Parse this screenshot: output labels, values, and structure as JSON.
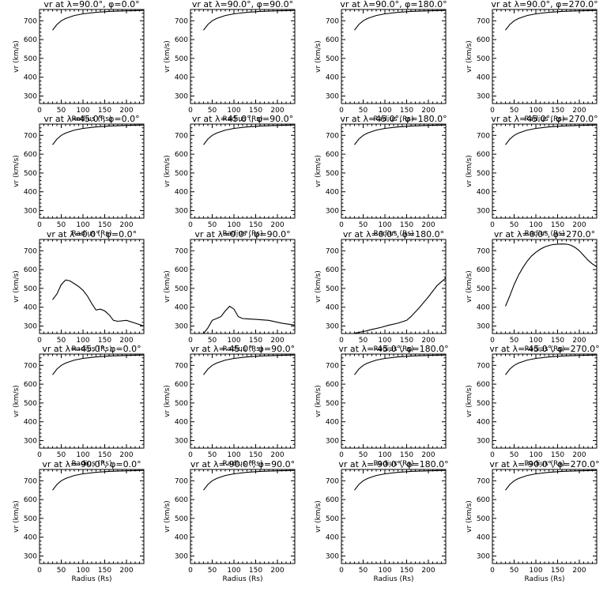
{
  "chart_data": [
    {
      "type": "line",
      "title": "vr at λ=90.0°, φ=0.0°",
      "xlabel": "Radius (Rs)",
      "ylabel": "vr (km/s)",
      "xlim": [
        0,
        240
      ],
      "ylim": [
        260,
        760
      ],
      "xticks": [
        0,
        50,
        100,
        150,
        200
      ],
      "yticks": [
        300,
        400,
        500,
        600,
        700
      ],
      "x": [
        30,
        40,
        50,
        60,
        80,
        100,
        130,
        160,
        200,
        240
      ],
      "y": [
        650,
        680,
        700,
        712,
        728,
        737,
        745,
        750,
        753,
        755
      ]
    },
    {
      "type": "line",
      "title": "vr at λ=90.0°, φ=90.0°",
      "xlabel": "Radius (Rs)",
      "ylabel": "vr (km/s)",
      "xlim": [
        0,
        240
      ],
      "ylim": [
        260,
        760
      ],
      "xticks": [
        0,
        50,
        100,
        150,
        200
      ],
      "yticks": [
        300,
        400,
        500,
        600,
        700
      ],
      "x": [
        30,
        40,
        50,
        60,
        80,
        100,
        130,
        160,
        200,
        240
      ],
      "y": [
        650,
        680,
        700,
        712,
        728,
        737,
        745,
        750,
        753,
        755
      ]
    },
    {
      "type": "line",
      "title": "vr at λ=90.0°, φ=180.0°",
      "xlabel": "Radius (Rs)",
      "ylabel": "vr (km/s)",
      "xlim": [
        0,
        240
      ],
      "ylim": [
        260,
        760
      ],
      "xticks": [
        0,
        50,
        100,
        150,
        200
      ],
      "yticks": [
        300,
        400,
        500,
        600,
        700
      ],
      "x": [
        30,
        40,
        50,
        60,
        80,
        100,
        130,
        160,
        200,
        240
      ],
      "y": [
        650,
        680,
        700,
        712,
        728,
        737,
        745,
        750,
        753,
        755
      ]
    },
    {
      "type": "line",
      "title": "vr at λ=90.0°, φ=270.0°",
      "xlabel": "Radius (Rs)",
      "ylabel": "vr (km/s)",
      "xlim": [
        0,
        240
      ],
      "ylim": [
        260,
        760
      ],
      "xticks": [
        0,
        50,
        100,
        150,
        200
      ],
      "yticks": [
        300,
        400,
        500,
        600,
        700
      ],
      "x": [
        30,
        40,
        50,
        60,
        80,
        100,
        130,
        160,
        200,
        240
      ],
      "y": [
        650,
        680,
        700,
        712,
        728,
        737,
        745,
        750,
        753,
        755
      ]
    },
    {
      "type": "line",
      "title": "vr at λ=45.0°, φ=0.0°",
      "xlabel": "Radius (Rs)",
      "ylabel": "vr (km/s)",
      "xlim": [
        0,
        240
      ],
      "ylim": [
        260,
        760
      ],
      "xticks": [
        0,
        50,
        100,
        150,
        200
      ],
      "yticks": [
        300,
        400,
        500,
        600,
        700
      ],
      "x": [
        30,
        40,
        50,
        60,
        80,
        100,
        130,
        160,
        200,
        240
      ],
      "y": [
        650,
        680,
        700,
        712,
        728,
        737,
        745,
        750,
        753,
        755
      ]
    },
    {
      "type": "line",
      "title": "vr at λ=45.0°, φ=90.0°",
      "xlabel": "Radius (Rs)",
      "ylabel": "vr (km/s)",
      "xlim": [
        0,
        240
      ],
      "ylim": [
        260,
        760
      ],
      "xticks": [
        0,
        50,
        100,
        150,
        200
      ],
      "yticks": [
        300,
        400,
        500,
        600,
        700
      ],
      "x": [
        30,
        40,
        50,
        60,
        80,
        100,
        130,
        160,
        200,
        240
      ],
      "y": [
        650,
        680,
        700,
        712,
        728,
        737,
        745,
        750,
        753,
        755
      ]
    },
    {
      "type": "line",
      "title": "vr at λ=45.0°, φ=180.0°",
      "xlabel": "Radius (Rs)",
      "ylabel": "vr (km/s)",
      "xlim": [
        0,
        240
      ],
      "ylim": [
        260,
        760
      ],
      "xticks": [
        0,
        50,
        100,
        150,
        200
      ],
      "yticks": [
        300,
        400,
        500,
        600,
        700
      ],
      "x": [
        30,
        40,
        50,
        60,
        80,
        100,
        130,
        160,
        200,
        240
      ],
      "y": [
        650,
        680,
        700,
        712,
        728,
        737,
        745,
        750,
        753,
        755
      ]
    },
    {
      "type": "line",
      "title": "vr at λ=45.0°, φ=270.0°",
      "xlabel": "Radius (Rs)",
      "ylabel": "vr (km/s)",
      "xlim": [
        0,
        240
      ],
      "ylim": [
        260,
        760
      ],
      "xticks": [
        0,
        50,
        100,
        150,
        200
      ],
      "yticks": [
        300,
        400,
        500,
        600,
        700
      ],
      "x": [
        30,
        40,
        50,
        60,
        80,
        100,
        130,
        160,
        200,
        240
      ],
      "y": [
        650,
        680,
        700,
        712,
        728,
        737,
        745,
        750,
        753,
        755
      ]
    },
    {
      "type": "line",
      "title": "vr at λ=0.0°, φ=0.0°",
      "xlabel": "Radius (Rs)",
      "ylabel": "vr (km/s)",
      "xlim": [
        0,
        240
      ],
      "ylim": [
        260,
        760
      ],
      "xticks": [
        0,
        50,
        100,
        150,
        200
      ],
      "yticks": [
        300,
        400,
        500,
        600,
        700
      ],
      "x": [
        30,
        40,
        50,
        60,
        70,
        80,
        90,
        100,
        110,
        120,
        130,
        140,
        150,
        160,
        170,
        180,
        200,
        220,
        240
      ],
      "y": [
        440,
        470,
        520,
        545,
        540,
        525,
        510,
        490,
        460,
        420,
        385,
        390,
        380,
        360,
        330,
        325,
        330,
        315,
        300
      ]
    },
    {
      "type": "line",
      "title": "vr at λ=0.0°, φ=90.0°",
      "xlabel": "Radius (Rs)",
      "ylabel": "vr (km/s)",
      "xlim": [
        0,
        240
      ],
      "ylim": [
        260,
        760
      ],
      "xticks": [
        0,
        50,
        100,
        150,
        200
      ],
      "yticks": [
        300,
        400,
        500,
        600,
        700
      ],
      "x": [
        30,
        40,
        50,
        60,
        70,
        80,
        90,
        100,
        110,
        120,
        130,
        150,
        180,
        210,
        240
      ],
      "y": [
        260,
        290,
        330,
        340,
        350,
        380,
        405,
        390,
        350,
        340,
        338,
        335,
        330,
        315,
        305
      ]
    },
    {
      "type": "line",
      "title": "vr at λ=0.0°, φ=180.0°",
      "xlabel": "Radius (Rs)",
      "ylabel": "vr (km/s)",
      "xlim": [
        0,
        240
      ],
      "ylim": [
        260,
        760
      ],
      "xticks": [
        0,
        50,
        100,
        150,
        200
      ],
      "yticks": [
        300,
        400,
        500,
        600,
        700
      ],
      "x": [
        30,
        50,
        70,
        90,
        110,
        130,
        150,
        160,
        180,
        200,
        220,
        240
      ],
      "y": [
        262,
        270,
        282,
        292,
        305,
        315,
        330,
        350,
        400,
        455,
        515,
        555
      ]
    },
    {
      "type": "line",
      "title": "vr at λ=0.0°, φ=270.0°",
      "xlabel": "Radius (Rs)",
      "ylabel": "vr (km/s)",
      "xlim": [
        0,
        240
      ],
      "ylim": [
        260,
        760
      ],
      "xticks": [
        0,
        50,
        100,
        150,
        200
      ],
      "yticks": [
        300,
        400,
        500,
        600,
        700
      ],
      "x": [
        30,
        40,
        50,
        60,
        70,
        80,
        90,
        100,
        110,
        120,
        130,
        140,
        150,
        160,
        170,
        180,
        190,
        200,
        210,
        220,
        230,
        240
      ],
      "y": [
        405,
        460,
        520,
        570,
        610,
        645,
        672,
        692,
        708,
        720,
        728,
        733,
        735,
        736,
        735,
        730,
        718,
        700,
        675,
        650,
        630,
        615
      ]
    },
    {
      "type": "line",
      "title": "vr at λ=-45.0°, φ=0.0°",
      "xlabel": "Radius (Rs)",
      "ylabel": "vr (km/s)",
      "xlim": [
        0,
        240
      ],
      "ylim": [
        260,
        760
      ],
      "xticks": [
        0,
        50,
        100,
        150,
        200
      ],
      "yticks": [
        300,
        400,
        500,
        600,
        700
      ],
      "x": [
        30,
        40,
        50,
        60,
        80,
        100,
        130,
        160,
        200,
        240
      ],
      "y": [
        650,
        680,
        700,
        712,
        728,
        737,
        745,
        750,
        753,
        755
      ]
    },
    {
      "type": "line",
      "title": "vr at λ=-45.0°, φ=90.0°",
      "xlabel": "Radius (Rs)",
      "ylabel": "vr (km/s)",
      "xlim": [
        0,
        240
      ],
      "ylim": [
        260,
        760
      ],
      "xticks": [
        0,
        50,
        100,
        150,
        200
      ],
      "yticks": [
        300,
        400,
        500,
        600,
        700
      ],
      "x": [
        30,
        40,
        50,
        60,
        80,
        100,
        130,
        160,
        200,
        240
      ],
      "y": [
        650,
        680,
        700,
        712,
        728,
        737,
        745,
        750,
        753,
        755
      ]
    },
    {
      "type": "line",
      "title": "vr at λ=-45.0°, φ=180.0°",
      "xlabel": "Radius (Rs)",
      "ylabel": "vr (km/s)",
      "xlim": [
        0,
        240
      ],
      "ylim": [
        260,
        760
      ],
      "xticks": [
        0,
        50,
        100,
        150,
        200
      ],
      "yticks": [
        300,
        400,
        500,
        600,
        700
      ],
      "x": [
        30,
        40,
        50,
        60,
        80,
        100,
        130,
        160,
        200,
        240
      ],
      "y": [
        650,
        680,
        700,
        712,
        728,
        737,
        745,
        750,
        753,
        755
      ]
    },
    {
      "type": "line",
      "title": "vr at λ=-45.0°, φ=270.0°",
      "xlabel": "Radius (Rs)",
      "ylabel": "vr (km/s)",
      "xlim": [
        0,
        240
      ],
      "ylim": [
        260,
        760
      ],
      "xticks": [
        0,
        50,
        100,
        150,
        200
      ],
      "yticks": [
        300,
        400,
        500,
        600,
        700
      ],
      "x": [
        30,
        40,
        50,
        60,
        80,
        100,
        130,
        160,
        200,
        240
      ],
      "y": [
        650,
        680,
        700,
        712,
        728,
        737,
        745,
        750,
        753,
        755
      ]
    },
    {
      "type": "line",
      "title": "vr at λ=-90.0°, φ=0.0°",
      "xlabel": "Radius (Rs)",
      "ylabel": "vr (km/s)",
      "xlim": [
        0,
        240
      ],
      "ylim": [
        260,
        760
      ],
      "xticks": [
        0,
        50,
        100,
        150,
        200
      ],
      "yticks": [
        300,
        400,
        500,
        600,
        700
      ],
      "x": [
        30,
        40,
        50,
        60,
        80,
        100,
        130,
        160,
        200,
        240
      ],
      "y": [
        650,
        680,
        700,
        712,
        728,
        737,
        745,
        750,
        753,
        755
      ]
    },
    {
      "type": "line",
      "title": "vr at λ=-90.0°, φ=90.0°",
      "xlabel": "Radius (Rs)",
      "ylabel": "vr (km/s)",
      "xlim": [
        0,
        240
      ],
      "ylim": [
        260,
        760
      ],
      "xticks": [
        0,
        50,
        100,
        150,
        200
      ],
      "yticks": [
        300,
        400,
        500,
        600,
        700
      ],
      "x": [
        30,
        40,
        50,
        60,
        80,
        100,
        130,
        160,
        200,
        240
      ],
      "y": [
        650,
        680,
        700,
        712,
        728,
        737,
        745,
        750,
        753,
        755
      ]
    },
    {
      "type": "line",
      "title": "vr at λ=-90.0°, φ=180.0°",
      "xlabel": "Radius (Rs)",
      "ylabel": "vr (km/s)",
      "xlim": [
        0,
        240
      ],
      "ylim": [
        260,
        760
      ],
      "xticks": [
        0,
        50,
        100,
        150,
        200
      ],
      "yticks": [
        300,
        400,
        500,
        600,
        700
      ],
      "x": [
        30,
        40,
        50,
        60,
        80,
        100,
        130,
        160,
        200,
        240
      ],
      "y": [
        650,
        680,
        700,
        712,
        728,
        737,
        745,
        750,
        753,
        755
      ]
    },
    {
      "type": "line",
      "title": "vr at λ=-90.0°, φ=270.0°",
      "xlabel": "Radius (Rs)",
      "ylabel": "vr (km/s)",
      "xlim": [
        0,
        240
      ],
      "ylim": [
        260,
        760
      ],
      "xticks": [
        0,
        50,
        100,
        150,
        200
      ],
      "yticks": [
        300,
        400,
        500,
        600,
        700
      ],
      "x": [
        30,
        40,
        50,
        60,
        80,
        100,
        130,
        160,
        200,
        240
      ],
      "y": [
        650,
        680,
        700,
        712,
        728,
        737,
        745,
        750,
        753,
        755
      ]
    }
  ]
}
